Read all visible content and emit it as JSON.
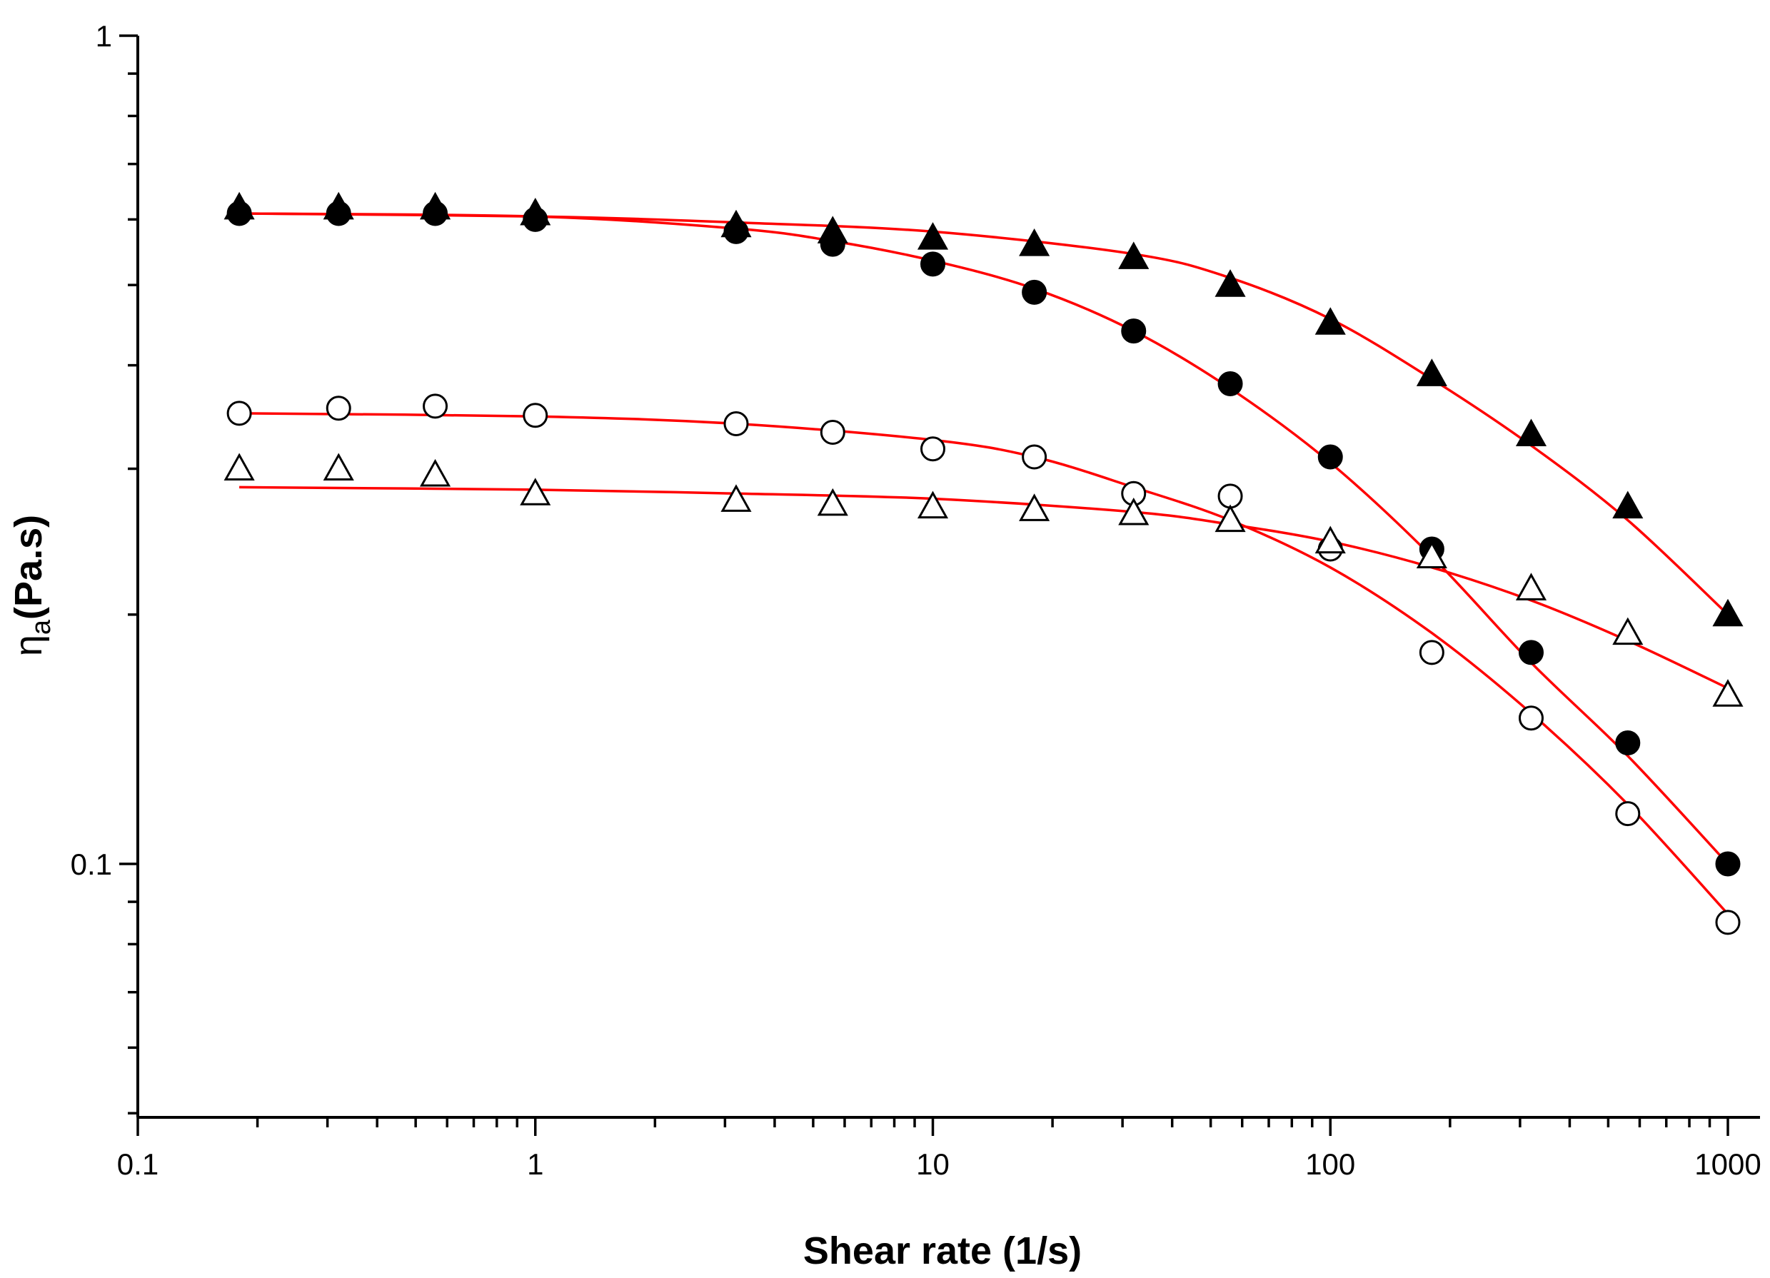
{
  "chart_data": {
    "type": "scatter",
    "title": "",
    "xlabel": "Shear rate (1/s)",
    "ylabel_main": "η",
    "ylabel_sub": "a",
    "ylabel_unit": "(Pa.s)",
    "xscale": "log",
    "yscale": "log",
    "xlim": [
      0.1,
      1000
    ],
    "ylim": [
      0.05,
      1
    ],
    "xticks": [
      {
        "value": 0.1,
        "label": "0.1"
      },
      {
        "value": 1,
        "label": "1"
      },
      {
        "value": 10,
        "label": "10"
      },
      {
        "value": 100,
        "label": "100"
      },
      {
        "value": 1000,
        "label": "1000"
      }
    ],
    "yticks": [
      {
        "value": 0.1,
        "label": "0.1"
      },
      {
        "value": 1,
        "label": "1"
      }
    ],
    "grid": false,
    "legend": "none",
    "fit_color": "#ff0000",
    "series": [
      {
        "name": "filled-triangles",
        "marker": "triangle",
        "filled": true,
        "x": [
          0.18,
          0.32,
          0.56,
          1.0,
          3.2,
          5.6,
          10,
          18,
          32,
          56,
          100,
          180,
          320,
          560,
          1000
        ],
        "y": [
          0.62,
          0.62,
          0.62,
          0.61,
          0.59,
          0.58,
          0.57,
          0.56,
          0.54,
          0.5,
          0.45,
          0.39,
          0.33,
          0.27,
          0.2
        ],
        "fit": {
          "x": [
            0.18,
            1,
            3.2,
            10,
            32,
            56,
            100,
            180,
            320,
            560,
            1000
          ],
          "y": [
            0.61,
            0.605,
            0.595,
            0.58,
            0.545,
            0.51,
            0.455,
            0.385,
            0.32,
            0.26,
            0.2
          ]
        }
      },
      {
        "name": "filled-circles",
        "marker": "circle",
        "filled": true,
        "x": [
          0.18,
          0.32,
          0.56,
          1.0,
          3.2,
          5.6,
          10,
          18,
          32,
          56,
          100,
          180,
          320,
          560,
          1000
        ],
        "y": [
          0.61,
          0.61,
          0.61,
          0.6,
          0.58,
          0.56,
          0.53,
          0.49,
          0.44,
          0.38,
          0.31,
          0.24,
          0.18,
          0.14,
          0.1
        ],
        "fit": {
          "x": [
            0.18,
            1,
            3.2,
            5.6,
            10,
            18,
            32,
            56,
            100,
            180,
            320,
            560,
            1000
          ],
          "y": [
            0.61,
            0.605,
            0.585,
            0.565,
            0.535,
            0.495,
            0.44,
            0.375,
            0.305,
            0.235,
            0.175,
            0.135,
            0.1
          ]
        }
      },
      {
        "name": "open-circles",
        "marker": "circle",
        "filled": false,
        "x": [
          0.18,
          0.32,
          0.56,
          1.0,
          3.2,
          5.6,
          10,
          18,
          32,
          56,
          100,
          180,
          320,
          560,
          1000
        ],
        "y": [
          0.35,
          0.355,
          0.357,
          0.348,
          0.34,
          0.332,
          0.317,
          0.31,
          0.28,
          0.278,
          0.24,
          0.18,
          0.15,
          0.115,
          0.085
        ],
        "fit": {
          "x": [
            0.18,
            1,
            3.2,
            10,
            18,
            32,
            56,
            100,
            180,
            320,
            560,
            1000
          ],
          "y": [
            0.35,
            0.347,
            0.34,
            0.325,
            0.31,
            0.285,
            0.26,
            0.228,
            0.19,
            0.152,
            0.118,
            0.087
          ]
        }
      },
      {
        "name": "open-triangles",
        "marker": "triangle",
        "filled": false,
        "x": [
          0.18,
          0.32,
          0.56,
          1.0,
          3.2,
          5.6,
          10,
          18,
          32,
          56,
          100,
          180,
          320,
          560,
          1000
        ],
        "y": [
          0.3,
          0.3,
          0.295,
          0.28,
          0.275,
          0.272,
          0.27,
          0.268,
          0.265,
          0.26,
          0.245,
          0.235,
          0.215,
          0.19,
          0.16
        ],
        "fit": {
          "x": [
            0.18,
            1,
            3.2,
            10,
            32,
            56,
            100,
            180,
            320,
            560,
            1000
          ],
          "y": [
            0.285,
            0.283,
            0.28,
            0.276,
            0.266,
            0.257,
            0.245,
            0.228,
            0.208,
            0.186,
            0.163
          ]
        }
      }
    ]
  }
}
